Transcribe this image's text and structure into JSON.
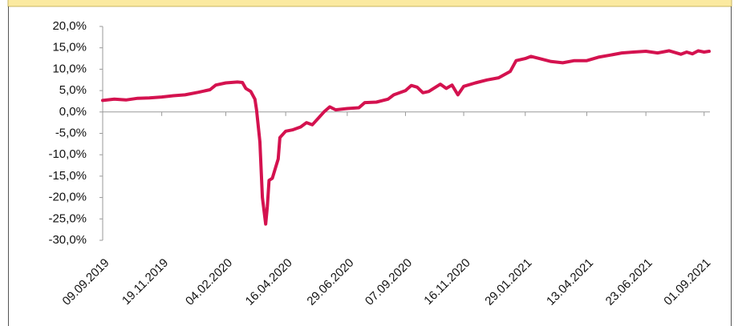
{
  "chart_data": {
    "type": "line",
    "x": [
      "09.09.2019",
      "23.09.2019",
      "07.10.2019",
      "21.10.2019",
      "04.11.2019",
      "19.11.2019",
      "03.12.2019",
      "17.12.2019",
      "02.01.2020",
      "16.01.2020",
      "23.01.2020",
      "04.02.2020",
      "18.02.2020",
      "24.02.2020",
      "28.02.2020",
      "05.03.2020",
      "10.03.2020",
      "12.03.2020",
      "16.03.2020",
      "19.03.2020",
      "23.03.2020",
      "25.03.2020",
      "27.03.2020",
      "31.03.2020",
      "03.04.2020",
      "07.04.2020",
      "09.04.2020",
      "16.04.2020",
      "24.04.2020",
      "04.05.2020",
      "11.05.2020",
      "18.05.2020",
      "25.05.2020",
      "01.06.2020",
      "08.06.2020",
      "15.06.2020",
      "29.06.2020",
      "13.07.2020",
      "20.07.2020",
      "03.08.2020",
      "17.08.2020",
      "24.08.2020",
      "07.09.2020",
      "14.09.2020",
      "21.09.2020",
      "28.09.2020",
      "05.10.2020",
      "19.10.2020",
      "26.10.2020",
      "02.11.2020",
      "09.11.2020",
      "16.11.2020",
      "30.11.2020",
      "14.12.2020",
      "28.12.2020",
      "11.01.2021",
      "18.01.2021",
      "29.01.2021",
      "05.02.2021",
      "15.02.2021",
      "01.03.2021",
      "15.03.2021",
      "29.03.2021",
      "13.04.2021",
      "27.04.2021",
      "11.05.2021",
      "25.05.2021",
      "08.06.2021",
      "23.06.2021",
      "07.07.2021",
      "21.07.2021",
      "04.08.2021",
      "11.08.2021",
      "18.08.2021",
      "25.08.2021",
      "01.09.2021",
      "07.09.2021"
    ],
    "values": [
      2.7,
      3.0,
      2.8,
      3.2,
      3.3,
      3.5,
      3.8,
      4.0,
      4.6,
      5.2,
      6.3,
      6.8,
      7.0,
      6.9,
      5.5,
      4.8,
      3.0,
      0.5,
      -7,
      -20,
      -26.2,
      -22,
      -16,
      -15.5,
      -13.5,
      -11,
      -6,
      -4.5,
      -4.2,
      -3.5,
      -2.5,
      -3.0,
      -1.5,
      0.0,
      1.2,
      0.5,
      0.8,
      1.0,
      2.2,
      2.3,
      3.0,
      4.0,
      5.0,
      6.2,
      5.8,
      4.5,
      4.8,
      6.5,
      5.5,
      6.3,
      4.0,
      6.0,
      6.8,
      7.5,
      8.0,
      9.5,
      12.0,
      12.5,
      13.0,
      12.5,
      11.8,
      11.5,
      12.0,
      12.0,
      12.8,
      13.3,
      13.8,
      14.0,
      14.2,
      13.8,
      14.3,
      13.5,
      14.0,
      13.6,
      14.3,
      14.0,
      14.2
    ],
    "color": "#d4124f",
    "xlim": [
      "09.09.2019",
      "08.09.2021"
    ],
    "xticks": [
      "09.09.2019",
      "19.11.2019",
      "04.02.2020",
      "16.04.2020",
      "29.06.2020",
      "07.09.2020",
      "16.11.2020",
      "29.01.2021",
      "13.04.2021",
      "23.06.2021",
      "01.09.2021"
    ],
    "ylim": [
      -30,
      20
    ],
    "yticks": [
      {
        "value": -30,
        "label": "-30,0%"
      },
      {
        "value": -25,
        "label": "-25,0%"
      },
      {
        "value": -20,
        "label": "-20,0%"
      },
      {
        "value": -15,
        "label": "-15,0%"
      },
      {
        "value": -10,
        "label": "-10,0%"
      },
      {
        "value": -5,
        "label": "-5,0%"
      },
      {
        "value": 0,
        "label": "0,0%"
      },
      {
        "value": 5,
        "label": "5,0%"
      },
      {
        "value": 10,
        "label": "10,0%"
      },
      {
        "value": 15,
        "label": "15,0%"
      },
      {
        "value": 20,
        "label": "20,0%"
      }
    ]
  }
}
